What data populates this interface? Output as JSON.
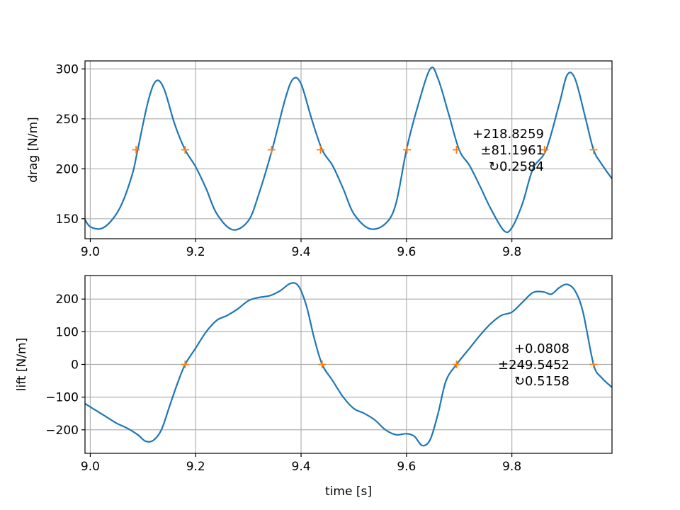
{
  "chart_data": [
    {
      "type": "line",
      "ylabel": "drag [N/m]",
      "xlabel": "",
      "xlim": [
        8.99,
        9.99
      ],
      "ylim": [
        130,
        308
      ],
      "xticks": [
        9.0,
        9.2,
        9.4,
        9.6,
        9.8
      ],
      "xtick_labels": [
        "9.0",
        "9.2",
        "9.4",
        "9.6",
        "9.8"
      ],
      "yticks": [
        150,
        200,
        250,
        300
      ],
      "ytick_labels": [
        "150",
        "200",
        "250",
        "300"
      ],
      "grid": true,
      "line_color": "#1f77b4",
      "marker_color": "#ff7f0e",
      "series": [
        {
          "x": [
            8.99,
            9.0,
            9.02,
            9.04,
            9.06,
            9.08,
            9.09,
            9.11,
            9.125,
            9.14,
            9.16,
            9.18,
            9.2,
            9.22,
            9.24,
            9.27,
            9.3,
            9.32,
            9.345,
            9.37,
            9.385,
            9.4,
            9.42,
            9.44,
            9.46,
            9.48,
            9.5,
            9.53,
            9.56,
            9.58,
            9.6,
            9.62,
            9.645,
            9.66,
            9.68,
            9.7,
            9.72,
            9.74,
            9.76,
            9.785,
            9.8,
            9.82,
            9.84,
            9.865,
            9.89,
            9.905,
            9.92,
            9.94,
            9.955,
            9.97,
            9.99
          ],
          "y": [
            149,
            142,
            140,
            148,
            165,
            195,
            219,
            268,
            288,
            280,
            245,
            219,
            202,
            180,
            155,
            139,
            148,
            175,
            219,
            270,
            290,
            285,
            250,
            219,
            203,
            180,
            155,
            140,
            145,
            165,
            219,
            260,
            300,
            290,
            255,
            219,
            203,
            182,
            160,
            138,
            141,
            165,
            200,
            219,
            265,
            294,
            290,
            250,
            219,
            205,
            190
          ]
        }
      ],
      "markers": {
        "x": [
          9.087,
          9.18,
          9.344,
          9.437,
          9.601,
          9.695,
          9.862,
          9.955
        ],
        "y": [
          219,
          219,
          219,
          219,
          219,
          219,
          219,
          219
        ]
      },
      "annotation": [
        "+218.8259",
        "±81.1961",
        "↻0.2584"
      ]
    },
    {
      "type": "line",
      "ylabel": "lift [N/m]",
      "xlabel": "time [s]",
      "xlim": [
        8.99,
        9.99
      ],
      "ylim": [
        -272,
        272
      ],
      "xticks": [
        9.0,
        9.2,
        9.4,
        9.6,
        9.8
      ],
      "xtick_labels": [
        "9.0",
        "9.2",
        "9.4",
        "9.6",
        "9.8"
      ],
      "yticks": [
        -200,
        -100,
        0,
        100,
        200
      ],
      "ytick_labels": [
        "−200",
        "−100",
        "0",
        "100",
        "200"
      ],
      "grid": true,
      "line_color": "#1f77b4",
      "marker_color": "#ff7f0e",
      "series": [
        {
          "x": [
            8.99,
            9.01,
            9.03,
            9.05,
            9.07,
            9.09,
            9.105,
            9.12,
            9.135,
            9.15,
            9.165,
            9.18,
            9.2,
            9.22,
            9.24,
            9.26,
            9.28,
            9.3,
            9.32,
            9.34,
            9.36,
            9.38,
            9.395,
            9.41,
            9.425,
            9.44,
            9.46,
            9.48,
            9.5,
            9.52,
            9.54,
            9.56,
            9.58,
            9.6,
            9.615,
            9.63,
            9.645,
            9.66,
            9.675,
            9.695,
            9.72,
            9.74,
            9.76,
            9.78,
            9.8,
            9.82,
            9.84,
            9.86,
            9.875,
            9.89,
            9.905,
            9.92,
            9.935,
            9.955,
            9.97,
            9.99
          ],
          "y": [
            -120,
            -140,
            -160,
            -180,
            -195,
            -215,
            -235,
            -232,
            -200,
            -130,
            -60,
            0,
            50,
            100,
            135,
            150,
            170,
            195,
            205,
            210,
            225,
            248,
            240,
            180,
            80,
            0,
            -50,
            -100,
            -135,
            -150,
            -170,
            -200,
            -215,
            -212,
            -220,
            -248,
            -230,
            -150,
            -50,
            0,
            50,
            90,
            125,
            150,
            160,
            190,
            220,
            222,
            215,
            235,
            245,
            225,
            160,
            0,
            -40,
            -70
          ]
        }
      ],
      "markers": {
        "x": [
          9.18,
          9.44,
          9.695,
          9.955
        ],
        "y": [
          0,
          0,
          0,
          0
        ]
      },
      "annotation": [
        "+0.0808",
        "±249.5452",
        "↻0.5158"
      ]
    }
  ]
}
